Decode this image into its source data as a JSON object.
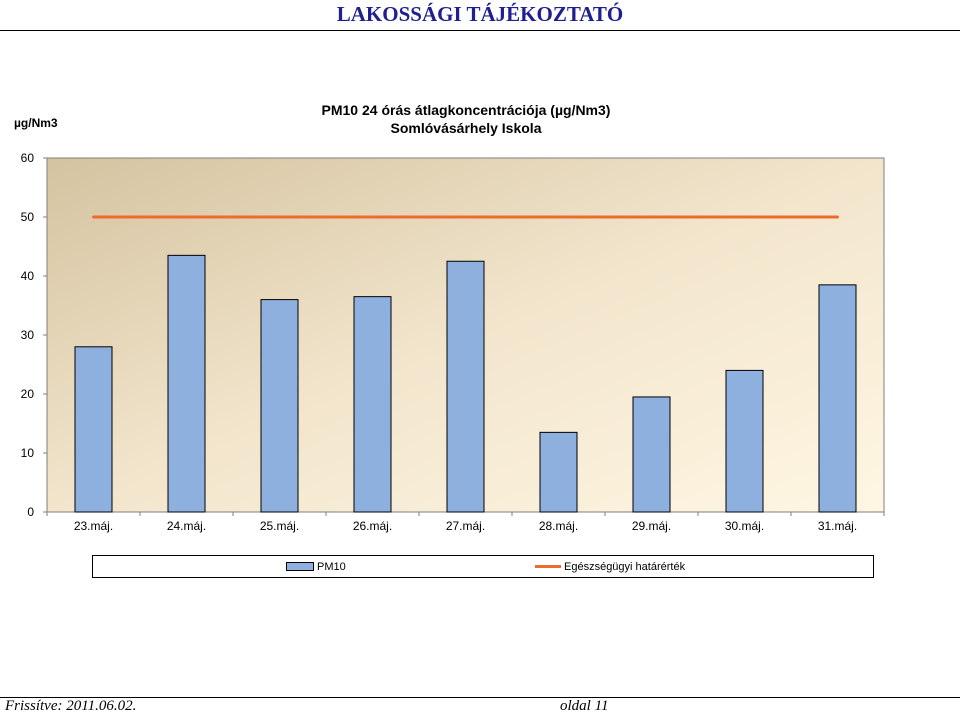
{
  "header": {
    "title": "LAKOSSÁGI TÁJÉKOZTATÓ"
  },
  "footer": {
    "updated": "Frissítve: 2011.06.02.",
    "page": "oldal 11"
  },
  "colors": {
    "bar_fill": "#8eb0df",
    "limit_line": "#ee6b2b",
    "title_blue": "#1f1f8f"
  },
  "chart_data": {
    "type": "bar",
    "title": "PM10  24 órás átlagkoncentrációja (µg/Nm3)",
    "subtitle": "Somlóvásárhely Iskola",
    "ylabel": "µg/Nm3",
    "xlabel": "",
    "ylim": [
      0,
      60
    ],
    "yticks": [
      "0",
      "10",
      "20",
      "30",
      "40",
      "50",
      "60"
    ],
    "grid": false,
    "legend_position": "bottom",
    "categories": [
      "23.máj.",
      "24.máj.",
      "25.máj.",
      "26.máj.",
      "27.máj.",
      "28.máj.",
      "29.máj.",
      "30.máj.",
      "31.máj."
    ],
    "series": [
      {
        "name": "PM10",
        "type": "bar",
        "values": [
          28,
          43.5,
          36,
          36.5,
          42.5,
          13.5,
          19.5,
          24,
          38.5
        ]
      },
      {
        "name": "Egészségügyi határérték",
        "type": "line",
        "values": [
          50,
          50,
          50,
          50,
          50,
          50,
          50,
          50,
          50
        ]
      }
    ]
  }
}
